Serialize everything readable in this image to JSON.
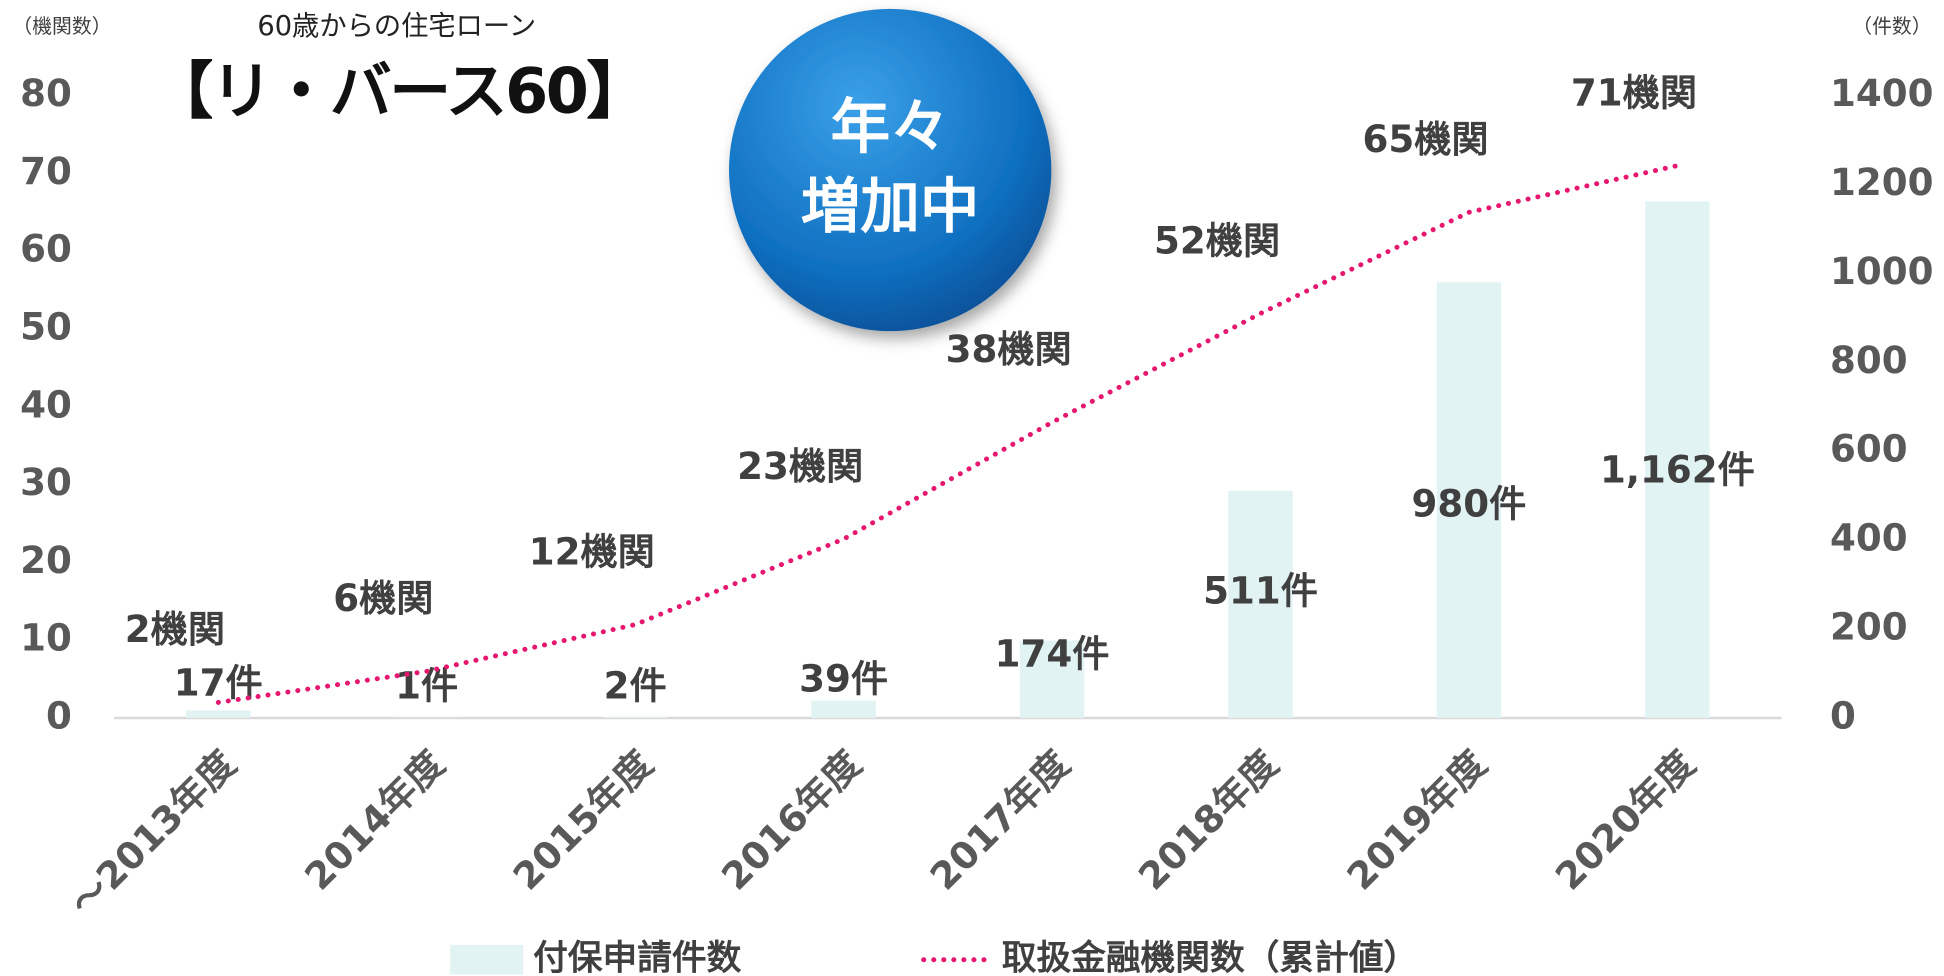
{
  "chart_data": {
    "type": "bar_line",
    "subtitle": "60歳からの住宅ローン",
    "logo": "【リ・バース60】",
    "annotations": [
      "年々",
      "増加中"
    ],
    "ylabel": "（機関数）",
    "y2label": "（件数）",
    "categories": [
      "～2013年度",
      "2014年度",
      "2015年度",
      "2016年度",
      "2017年度",
      "2018年度",
      "2019年度",
      "2020年度"
    ],
    "series": [
      {
        "name": "付保申請件数",
        "type": "bar",
        "axis": "y2",
        "color": "#e2f3f3",
        "values": [
          17,
          1,
          2,
          39,
          174,
          511,
          980,
          1162
        ],
        "value_labels": [
          "17件",
          "1件",
          "2件",
          "39件",
          "174件",
          "511件",
          "980件",
          "1,162件"
        ]
      },
      {
        "name": "取扱金融機関数（累計値）",
        "type": "line",
        "axis": "y",
        "color": "#e6176f",
        "values": [
          2,
          6,
          12,
          23,
          38,
          52,
          65,
          71
        ],
        "value_labels": [
          "2機関",
          "6機関",
          "12機関",
          "23機関",
          "38機関",
          "52機関",
          "65機関",
          "71機関"
        ]
      }
    ],
    "ylim": [
      0,
      80
    ],
    "yticks": [
      0,
      10,
      20,
      30,
      40,
      50,
      60,
      70,
      80
    ],
    "y2lim": [
      0,
      1400
    ],
    "y2ticks": [
      0,
      200,
      400,
      600,
      800,
      1000,
      1200,
      1400
    ]
  }
}
